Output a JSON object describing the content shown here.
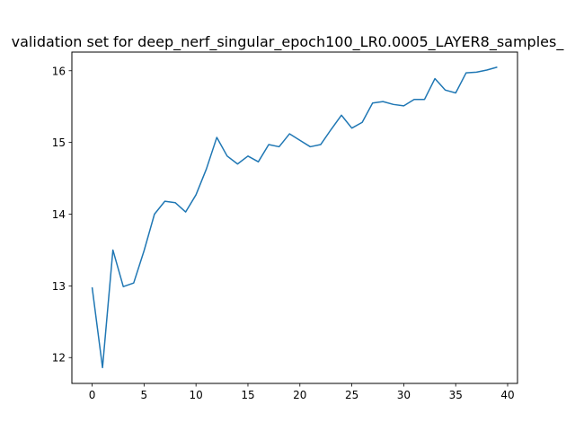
{
  "chart_data": {
    "type": "line",
    "title": "validation set for deep_nerf_singular_epoch100_LR0.0005_LAYER8_samples_",
    "xlabel": "",
    "ylabel": "",
    "xlim": [
      -1.95,
      40.95
    ],
    "ylim": [
      11.64,
      16.26
    ],
    "xticks": [
      0,
      5,
      10,
      15,
      20,
      25,
      30,
      35,
      40
    ],
    "yticks": [
      12,
      13,
      14,
      15,
      16
    ],
    "grid": false,
    "series": [
      {
        "color": "#1f77b4",
        "x": [
          0,
          1,
          2,
          3,
          4,
          5,
          6,
          7,
          8,
          9,
          10,
          11,
          12,
          13,
          14,
          15,
          16,
          17,
          18,
          19,
          20,
          21,
          22,
          23,
          24,
          25,
          26,
          27,
          28,
          29,
          30,
          31,
          32,
          33,
          34,
          35,
          36,
          37,
          38,
          39
        ],
        "y": [
          12.98,
          11.86,
          13.5,
          12.99,
          13.04,
          13.49,
          14.0,
          14.18,
          14.16,
          14.03,
          14.27,
          14.63,
          15.07,
          14.81,
          14.7,
          14.81,
          14.73,
          14.97,
          14.94,
          15.12,
          15.03,
          14.94,
          14.97,
          15.18,
          15.38,
          15.2,
          15.28,
          15.55,
          15.57,
          15.53,
          15.51,
          15.6,
          15.6,
          15.89,
          15.73,
          15.69,
          15.97,
          15.98,
          16.01,
          16.05
        ]
      }
    ]
  }
}
